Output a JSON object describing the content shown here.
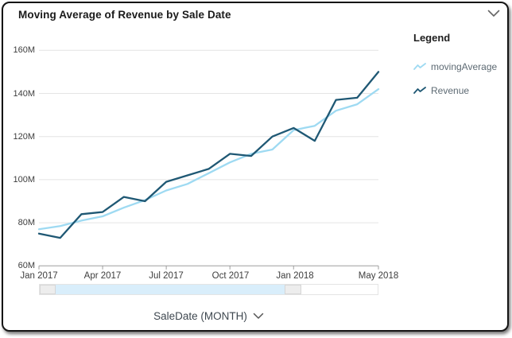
{
  "header": {
    "title": "Moving Average of Revenue by Sale Date",
    "collapse_icon": "chevron-down"
  },
  "legend": {
    "title": "Legend"
  },
  "x_axis_control": {
    "label": "SaleDate (MONTH)",
    "icon": "chevron-down"
  },
  "scrollbar": {
    "selected_fill": "#d9eefb",
    "handle_fill": "#ededed",
    "handle_border": "#d6d6d6"
  },
  "chart_data": {
    "type": "line",
    "title": "Moving Average of Revenue by Sale Date",
    "xlabel": "SaleDate (MONTH)",
    "ylabel": "",
    "x": [
      "Jan 2017",
      "Feb 2017",
      "Mar 2017",
      "Apr 2017",
      "May 2017",
      "Jun 2017",
      "Jul 2017",
      "Aug 2017",
      "Sep 2017",
      "Oct 2017",
      "Nov 2017",
      "Dec 2017",
      "Jan 2018",
      "Feb 2018",
      "Mar 2018",
      "Apr 2018",
      "May 2018"
    ],
    "x_tick_labels": [
      "Jan 2017",
      "Apr 2017",
      "Jul 2017",
      "Oct 2017",
      "Jan 2018",
      "May 2018"
    ],
    "x_tick_indices": [
      0,
      3,
      6,
      9,
      12,
      16
    ],
    "ylim": [
      60,
      160
    ],
    "y_unit": "M",
    "y_ticks": [
      "160M",
      "140M",
      "120M",
      "100M",
      "80M",
      "60M"
    ],
    "y_tick_values": [
      160,
      140,
      120,
      100,
      80,
      60
    ],
    "grid": "horizontal",
    "legend_position": "right",
    "series": [
      {
        "name": "movingAverage",
        "color": "#9edaf2",
        "values": [
          77,
          78.5,
          81,
          83,
          87,
          90.5,
          95,
          98,
          103,
          108,
          112,
          114,
          123,
          125,
          132,
          135,
          142
        ]
      },
      {
        "name": "Revenue",
        "color": "#1f5874",
        "values": [
          75,
          73,
          84,
          85,
          92,
          90,
          99,
          102,
          105,
          112,
          111,
          120,
          124,
          118,
          137,
          138,
          150
        ]
      }
    ]
  }
}
